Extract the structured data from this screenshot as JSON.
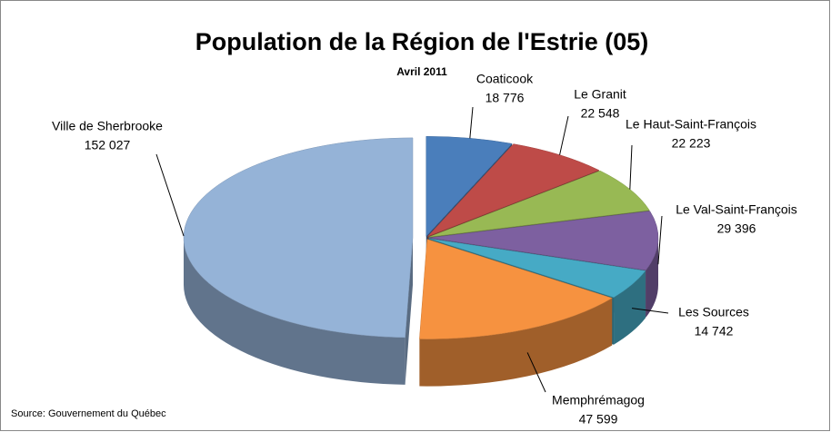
{
  "chart_data": {
    "type": "pie3d",
    "title": "Population de la Région de l'Estrie (05)",
    "subtitle": "Avril 2011",
    "source": "Source: Gouvernement du Québec",
    "categories": [
      "Coaticook",
      "Le Granit",
      "Le Haut-Saint-François",
      "Le Val-Saint-François",
      "Les Sources",
      "Memphrémagog",
      "Ville de Sherbrooke"
    ],
    "values": [
      18776,
      22548,
      22223,
      29396,
      14742,
      47599,
      152027
    ],
    "value_labels": [
      "18 776",
      "22 548",
      "22 223",
      "29 396",
      "14 742",
      "47 599",
      "152 027"
    ],
    "colors": [
      "#4a7ebb",
      "#be4b48",
      "#98b954",
      "#7d60a0",
      "#46aac5",
      "#f69240",
      "#95b3d7"
    ]
  }
}
